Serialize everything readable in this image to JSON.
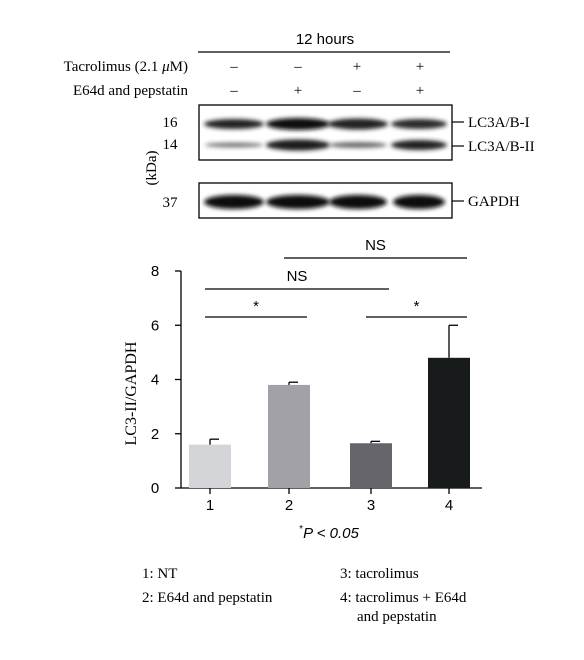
{
  "blot": {
    "time_label": "12 hours",
    "rows": [
      {
        "label_pre": "Tacrolimus (2.1 ",
        "label_mu": "μ",
        "label_post": "M)",
        "signs": [
          "–",
          "–",
          "+",
          "+"
        ]
      },
      {
        "label": "E64d and pepstatin",
        "signs": [
          "–",
          "+",
          "–",
          "+"
        ]
      }
    ],
    "kda_label": "(kDa)",
    "markers": [
      "16",
      "14",
      "37"
    ],
    "band_labels": [
      "LC3A/B-I",
      "LC3A/B-II",
      "GAPDH"
    ]
  },
  "chart_data": {
    "type": "bar",
    "categories": [
      "1",
      "2",
      "3",
      "4"
    ],
    "values": [
      1.6,
      3.8,
      1.65,
      4.8
    ],
    "errors": [
      0.2,
      0.1,
      0.07,
      1.2
    ],
    "bar_colors": [
      "#d4d5d9",
      "#a2a1a8",
      "#66656c",
      "#171b1b"
    ],
    "ylabel": "LC3-II/GAPDH",
    "xlabel": "",
    "ylim": [
      0,
      8
    ],
    "yticks": [
      "0",
      "2",
      "4",
      "6",
      "8"
    ],
    "significance": [
      {
        "from": 1,
        "to": 2,
        "label": "*"
      },
      {
        "from": 3,
        "to": 4,
        "label": "*"
      },
      {
        "from": 1,
        "to": 3,
        "label": "NS"
      },
      {
        "from": 2,
        "to": 4,
        "label": "NS"
      }
    ],
    "pvalue_note": {
      "star": "*",
      "text": "P < 0.05"
    }
  },
  "legend": [
    {
      "line1": "1: NT"
    },
    {
      "line1": "2: E64d and pepstatin"
    },
    {
      "line1": "3: tacrolimus"
    },
    {
      "line1": "4: tacrolimus + E64d",
      "line2": "and pepstatin"
    }
  ]
}
